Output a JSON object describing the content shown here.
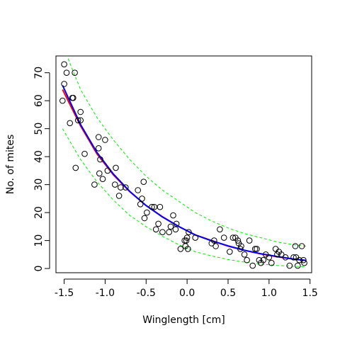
{
  "chart_data": {
    "type": "scatter",
    "title": "",
    "xlabel": "Winglength [cm]",
    "ylabel": "No. of mites",
    "xlim": [
      -1.6,
      1.52
    ],
    "ylim": [
      -1.5,
      76
    ],
    "x_ticks": [
      -1.5,
      -1.0,
      -0.5,
      0.0,
      0.5,
      1.0,
      1.5
    ],
    "x_tick_labels": [
      "-1.5",
      "-1.0",
      "-0.5",
      "0.0",
      "0.5",
      "1.0",
      "1.5"
    ],
    "y_ticks": [
      0,
      10,
      20,
      30,
      40,
      50,
      60,
      70
    ],
    "y_tick_labels": [
      "0",
      "10",
      "20",
      "30",
      "40",
      "50",
      "60",
      "70"
    ],
    "grid": false,
    "legend": "none",
    "points": [
      [
        -1.52,
        60
      ],
      [
        -1.5,
        66
      ],
      [
        -1.5,
        73
      ],
      [
        -1.47,
        70
      ],
      [
        -1.43,
        52
      ],
      [
        -1.4,
        61
      ],
      [
        -1.39,
        61
      ],
      [
        -1.37,
        70
      ],
      [
        -1.36,
        36
      ],
      [
        -1.33,
        53
      ],
      [
        -1.3,
        56
      ],
      [
        -1.3,
        53
      ],
      [
        -1.25,
        41
      ],
      [
        -1.13,
        30
      ],
      [
        -1.08,
        47
      ],
      [
        -1.08,
        43
      ],
      [
        -1.07,
        34
      ],
      [
        -1.06,
        39
      ],
      [
        -1.03,
        32
      ],
      [
        -1.0,
        46
      ],
      [
        -0.97,
        35
      ],
      [
        -0.88,
        30
      ],
      [
        -0.87,
        36
      ],
      [
        -0.83,
        26
      ],
      [
        -0.81,
        29
      ],
      [
        -0.75,
        29
      ],
      [
        -0.6,
        28
      ],
      [
        -0.57,
        23
      ],
      [
        -0.55,
        25
      ],
      [
        -0.53,
        31
      ],
      [
        -0.52,
        18
      ],
      [
        -0.49,
        20
      ],
      [
        -0.43,
        22
      ],
      [
        -0.4,
        22
      ],
      [
        -0.38,
        14
      ],
      [
        -0.35,
        16
      ],
      [
        -0.33,
        22
      ],
      [
        -0.3,
        13
      ],
      [
        -0.22,
        13
      ],
      [
        -0.2,
        15
      ],
      [
        -0.17,
        19
      ],
      [
        -0.14,
        14
      ],
      [
        -0.13,
        16
      ],
      [
        -0.08,
        7
      ],
      [
        -0.03,
        10
      ],
      [
        -0.02,
        8
      ],
      [
        -0.01,
        10
      ],
      [
        0.0,
        11
      ],
      [
        0.01,
        7
      ],
      [
        0.02,
        13
      ],
      [
        0.1,
        11
      ],
      [
        0.3,
        9
      ],
      [
        0.33,
        10
      ],
      [
        0.35,
        8
      ],
      [
        0.4,
        14
      ],
      [
        0.45,
        11
      ],
      [
        0.52,
        6
      ],
      [
        0.56,
        11
      ],
      [
        0.59,
        11
      ],
      [
        0.62,
        10
      ],
      [
        0.63,
        9
      ],
      [
        0.65,
        7
      ],
      [
        0.66,
        8
      ],
      [
        0.7,
        5
      ],
      [
        0.73,
        3
      ],
      [
        0.76,
        10
      ],
      [
        0.8,
        1
      ],
      [
        0.83,
        7
      ],
      [
        0.85,
        7
      ],
      [
        0.88,
        3
      ],
      [
        0.9,
        2
      ],
      [
        0.93,
        3
      ],
      [
        0.96,
        5
      ],
      [
        1.0,
        4
      ],
      [
        1.03,
        2
      ],
      [
        1.08,
        7
      ],
      [
        1.1,
        5
      ],
      [
        1.12,
        6
      ],
      [
        1.15,
        5
      ],
      [
        1.2,
        4
      ],
      [
        1.25,
        1
      ],
      [
        1.3,
        4
      ],
      [
        1.32,
        8
      ],
      [
        1.33,
        4
      ],
      [
        1.35,
        1
      ],
      [
        1.37,
        3
      ],
      [
        1.4,
        8
      ],
      [
        1.42,
        3
      ],
      [
        1.43,
        2
      ]
    ],
    "series": [
      {
        "role": "fit-red",
        "color": "#ff0000",
        "style": "solid",
        "x": [
          -1.52,
          -1.3,
          -1.1,
          -0.9,
          -0.7,
          -0.5,
          -0.3,
          -0.1,
          0.1,
          0.3,
          0.5,
          0.7,
          0.9,
          1.1,
          1.3,
          1.45
        ],
        "y": [
          64,
          51,
          41,
          33.5,
          27.5,
          22.5,
          18.5,
          15,
          12,
          10,
          8,
          6.5,
          5.2,
          4.2,
          3.4,
          2.9
        ]
      },
      {
        "role": "fit-blue",
        "color": "#0000ff",
        "style": "solid",
        "x": [
          -1.52,
          -1.3,
          -1.1,
          -0.9,
          -0.7,
          -0.5,
          -0.3,
          -0.1,
          0.1,
          0.3,
          0.5,
          0.7,
          0.9,
          1.1,
          1.3,
          1.45
        ],
        "y": [
          65.5,
          51.5,
          41.5,
          33.8,
          27.6,
          22.5,
          18.4,
          15,
          12,
          9.9,
          8.1,
          6.5,
          5.3,
          4.3,
          3.4,
          2.9
        ]
      },
      {
        "role": "band-upper",
        "color": "#00ee00",
        "style": "dashed",
        "x": [
          -1.52,
          -1.3,
          -1.1,
          -0.9,
          -0.7,
          -0.5,
          -0.3,
          -0.1,
          0.1,
          0.3,
          0.5,
          0.7,
          0.9,
          1.1,
          1.3,
          1.45
        ],
        "y": [
          80,
          64,
          54,
          46,
          39,
          33,
          28,
          24,
          20,
          17,
          14.5,
          12.5,
          11,
          9.5,
          8.5,
          8
        ]
      },
      {
        "role": "band-lower",
        "color": "#00ee00",
        "style": "dashed",
        "x": [
          -1.52,
          -1.3,
          -1.1,
          -0.9,
          -0.7,
          -0.5,
          -0.3,
          -0.1,
          0.1,
          0.3,
          0.5,
          0.7,
          0.9,
          1.1,
          1.3,
          1.45
        ],
        "y": [
          50,
          39,
          31,
          24.5,
          19,
          15,
          11.5,
          8.5,
          6,
          4.5,
          3.2,
          2.3,
          1.6,
          1.1,
          0.8,
          0.6
        ]
      }
    ]
  }
}
